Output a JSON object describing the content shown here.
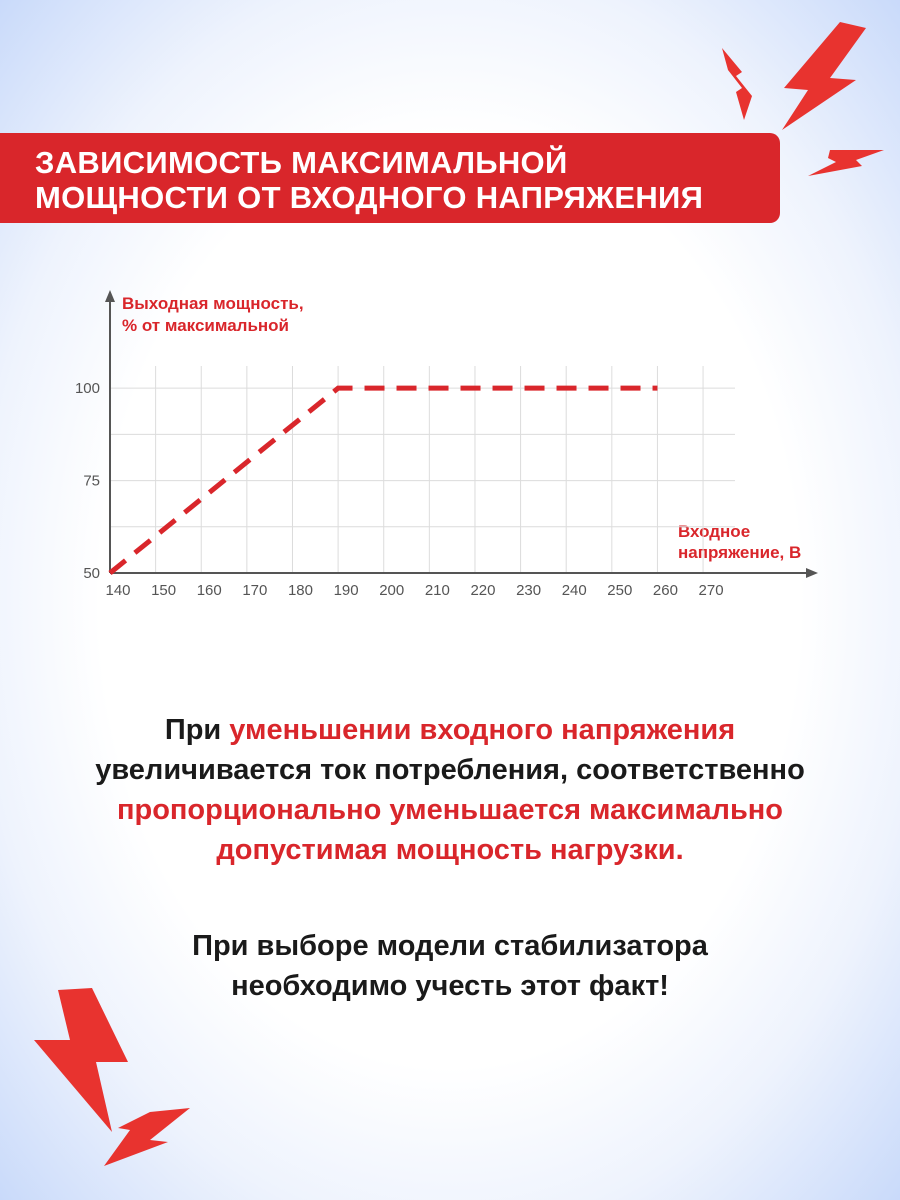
{
  "header": {
    "title": [
      "ЗАВИСИМОСТЬ МАКСИМАЛЬНОЙ",
      "МОЩНОСТИ ОТ ВХОДНОГО НАПРЯЖЕНИЯ"
    ]
  },
  "chart_data": {
    "type": "line",
    "ylabel": [
      "Выходная мощность,",
      "% от максимальной"
    ],
    "xlabel": [
      "Входное",
      "напряжение, В"
    ],
    "x": [
      140,
      190,
      260
    ],
    "series": [
      {
        "color": "#d9262b",
        "values": [
          50,
          100,
          100
        ]
      }
    ],
    "xlim": [
      140,
      277
    ],
    "ylim": [
      50,
      106
    ],
    "xticks": [
      140,
      150,
      160,
      170,
      180,
      190,
      200,
      210,
      220,
      230,
      240,
      250,
      260,
      270
    ],
    "yticks": [
      50,
      75,
      100
    ],
    "minor_yticks": [
      62.5,
      87.5
    ],
    "grid": true
  },
  "paragraphs": [
    {
      "lines": [
        [
          {
            "text": "При ",
            "accent": false
          },
          {
            "text": "уменьшении входного напряжения",
            "accent": true
          }
        ],
        [
          {
            "text": "увеличивается ток потребления, соответственно",
            "accent": false
          }
        ],
        [
          {
            "text": "пропорционально уменьшается максимально",
            "accent": true
          }
        ],
        [
          {
            "text": "допустимая мощность нагрузки.",
            "accent": true
          }
        ]
      ]
    },
    {
      "lines": [
        [
          {
            "text": "При выборе модели стабилизатора",
            "accent": false
          }
        ],
        [
          {
            "text": "необходимо учесть этот факт!",
            "accent": false
          }
        ]
      ]
    }
  ]
}
